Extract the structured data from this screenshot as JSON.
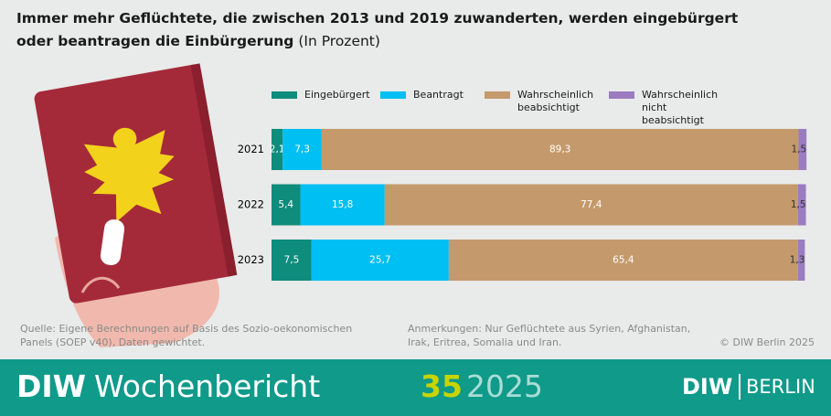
{
  "chart_data": {
    "type": "stacked-bar-horizontal",
    "title": "Immer mehr Geflüchtete, die zwischen 2013 und 2019 zuwanderten, werden eingebürgert oder beantragen die Einbürgerung",
    "unit": "(In Prozent)",
    "categories": [
      "2021",
      "2022",
      "2023"
    ],
    "xlim": [
      0,
      100
    ],
    "series": [
      {
        "name": "Eingebürgert",
        "color": "#0e8c7c",
        "values": [
          2.1,
          5.4,
          7.5
        ],
        "value_labels": [
          "2,1",
          "5,4",
          "7,5"
        ]
      },
      {
        "name": "Beantragt",
        "color": "#00bff2",
        "values": [
          7.3,
          15.8,
          25.7
        ],
        "value_labels": [
          "7,3",
          "15,8",
          "25,7"
        ]
      },
      {
        "name": "Wahrscheinlich beabsichtigt",
        "color": "#c49a6c",
        "values": [
          89.3,
          77.4,
          65.4
        ],
        "value_labels": [
          "89,3",
          "77,4",
          "65,4"
        ]
      },
      {
        "name": "Wahrscheinlich nicht beabsichtigt",
        "color": "#9a7cc0",
        "values": [
          1.5,
          1.5,
          1.3
        ],
        "value_labels": [
          "1,5",
          "1,5",
          "1,3"
        ]
      }
    ],
    "source": "Quelle: Eigene Berechnungen auf Basis des Sozio-oekonomischen Panels (SOEP v40), Daten gewichtet.",
    "note": "Anmerkungen: Nur Geflüchtete aus Syrien, Afghanistan, Irak, Eritrea, Somalia und Iran.",
    "copyright": "© DIW Berlin 2025"
  },
  "footer": {
    "brand": "DIW",
    "publication": "Wochenbericht",
    "issue": "35",
    "year": "2025",
    "logo_left": "DIW",
    "logo_right": "BERLIN"
  }
}
